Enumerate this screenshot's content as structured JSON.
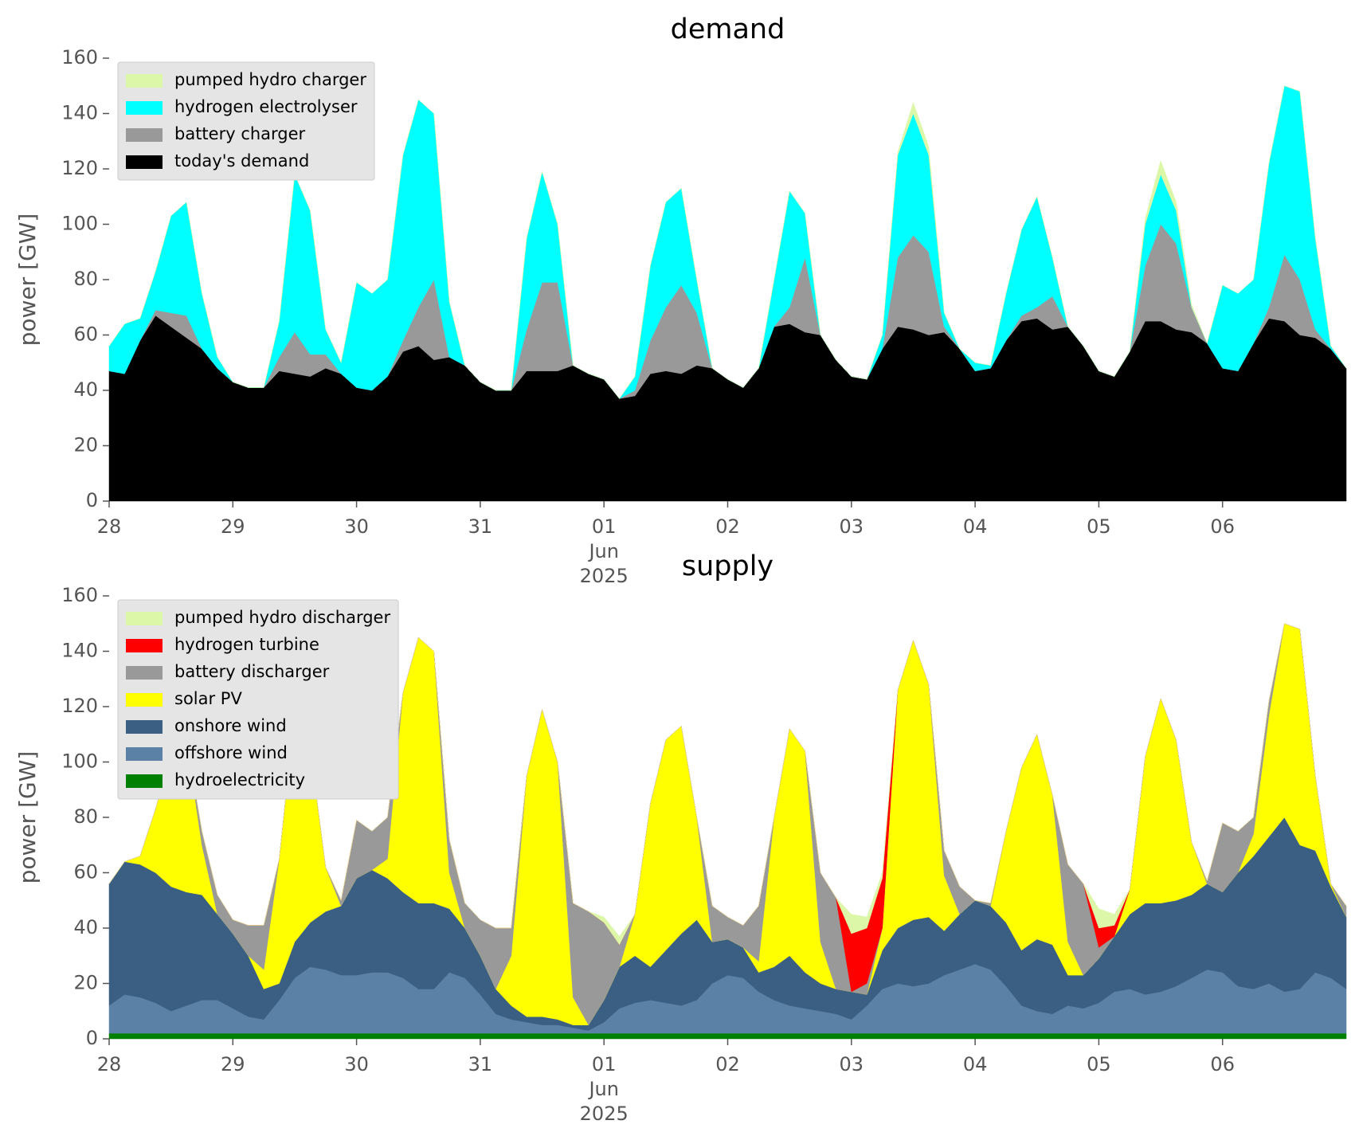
{
  "chart_data": [
    {
      "type": "area",
      "stacked": true,
      "title": "demand",
      "ylabel": "power [GW]",
      "legend": "upper left",
      "x": [
        0,
        3,
        6,
        9,
        12,
        15,
        18,
        21,
        24,
        27,
        30,
        33,
        36,
        39,
        42,
        45,
        48,
        51,
        54,
        57,
        60,
        63,
        66,
        69,
        72,
        75,
        78,
        81,
        84,
        87,
        90,
        93,
        96,
        99,
        102,
        105,
        108,
        111,
        114,
        117,
        120,
        123,
        126,
        129,
        132,
        135,
        138,
        141,
        144,
        147,
        150,
        153,
        156,
        159,
        162,
        165,
        168,
        171,
        174,
        177,
        180,
        183,
        186,
        189,
        192,
        195,
        198,
        201,
        204,
        207,
        210,
        213,
        216,
        219,
        222,
        225,
        228,
        231,
        234,
        237,
        240
      ],
      "xlim": [
        0,
        240
      ],
      "xticks": [
        {
          "value": 0,
          "label": "28"
        },
        {
          "value": 24,
          "label": "29"
        },
        {
          "value": 48,
          "label": "30"
        },
        {
          "value": 72,
          "label": "31"
        },
        {
          "value": 96,
          "label": "01"
        },
        {
          "value": 120,
          "label": "02"
        },
        {
          "value": 144,
          "label": "03"
        },
        {
          "value": 168,
          "label": "04"
        },
        {
          "value": 192,
          "label": "05"
        },
        {
          "value": 216,
          "label": "06"
        }
      ],
      "xtick_sublabels": [
        "Jun",
        "2025"
      ],
      "ylim": [
        0,
        160
      ],
      "yticks": [
        0,
        20,
        40,
        60,
        80,
        100,
        120,
        140,
        160
      ],
      "series": [
        {
          "name": "today's demand",
          "color": "#000000",
          "values": [
            47,
            46,
            58,
            67,
            63,
            59,
            55,
            48,
            43,
            41,
            41,
            47,
            46,
            45,
            48,
            46,
            41,
            40,
            45,
            54,
            56,
            51,
            52,
            49,
            43,
            40,
            40,
            47,
            47,
            47,
            49,
            46,
            44,
            37,
            38,
            46,
            47,
            46,
            49,
            48,
            44,
            41,
            48,
            63,
            64,
            61,
            60,
            51,
            45,
            44,
            55,
            63,
            62,
            60,
            61,
            55,
            47,
            48,
            58,
            65,
            66,
            62,
            63,
            56,
            47,
            45,
            54,
            65,
            65,
            62,
            61,
            57,
            48,
            47,
            57,
            66,
            65,
            60,
            59,
            55,
            48
          ]
        },
        {
          "name": "battery charger",
          "color": "#999999",
          "values": [
            0,
            0,
            0,
            2,
            5,
            8,
            0,
            0,
            0,
            0,
            0,
            5,
            15,
            8,
            5,
            0,
            0,
            0,
            0,
            4,
            14,
            29,
            0,
            0,
            0,
            0,
            0,
            15,
            32,
            32,
            0,
            0,
            0,
            0,
            2,
            12,
            23,
            32,
            19,
            0,
            0,
            0,
            0,
            0,
            6,
            27,
            0,
            0,
            0,
            0,
            0,
            25,
            34,
            30,
            2,
            0,
            0,
            0,
            0,
            2,
            4,
            12,
            0,
            0,
            0,
            0,
            0,
            20,
            35,
            31,
            9,
            0,
            0,
            0,
            0,
            4,
            24,
            20,
            3,
            0,
            0
          ]
        },
        {
          "name": "hydrogen electrolyser",
          "color": "#00ffff",
          "values": [
            9,
            18,
            8,
            14,
            35,
            41,
            20,
            4,
            0,
            0,
            0,
            13,
            57,
            52,
            9,
            4,
            38,
            35,
            35,
            67,
            75,
            60,
            20,
            0,
            0,
            0,
            0,
            33,
            40,
            21,
            0,
            0,
            0,
            0,
            5,
            27,
            38,
            35,
            12,
            0,
            0,
            0,
            0,
            17,
            42,
            16,
            0,
            0,
            0,
            0,
            5,
            37,
            44,
            35,
            5,
            0,
            3,
            1,
            17,
            31,
            40,
            14,
            0,
            0,
            0,
            0,
            0,
            15,
            18,
            12,
            0,
            0,
            30,
            28,
            23,
            52,
            61,
            68,
            33,
            1,
            0
          ]
        },
        {
          "name": "pumped hydro charger",
          "color": "#ddf7a8",
          "values": [
            0,
            0,
            0,
            0,
            0,
            0,
            0,
            0,
            0,
            0,
            0,
            0,
            0,
            0,
            0,
            0,
            0,
            0,
            0,
            0,
            0,
            0,
            0,
            0,
            0,
            0,
            0,
            0,
            0,
            0,
            0,
            0,
            0,
            0,
            0,
            0,
            0,
            0,
            0,
            0,
            0,
            0,
            0,
            0,
            0,
            0,
            0,
            0,
            0,
            0,
            0,
            1,
            4,
            3,
            0,
            0,
            0,
            0,
            0,
            0,
            0,
            0,
            0,
            0,
            0,
            0,
            0,
            2,
            5,
            3,
            1,
            0,
            0,
            0,
            0,
            0,
            0,
            0,
            0,
            0,
            0
          ]
        }
      ]
    },
    {
      "type": "area",
      "stacked": true,
      "title": "supply",
      "ylabel": "power [GW]",
      "legend": "upper left",
      "x": [
        0,
        3,
        6,
        9,
        12,
        15,
        18,
        21,
        24,
        27,
        30,
        33,
        36,
        39,
        42,
        45,
        48,
        51,
        54,
        57,
        60,
        63,
        66,
        69,
        72,
        75,
        78,
        81,
        84,
        87,
        90,
        93,
        96,
        99,
        102,
        105,
        108,
        111,
        114,
        117,
        120,
        123,
        126,
        129,
        132,
        135,
        138,
        141,
        144,
        147,
        150,
        153,
        156,
        159,
        162,
        165,
        168,
        171,
        174,
        177,
        180,
        183,
        186,
        189,
        192,
        195,
        198,
        201,
        204,
        207,
        210,
        213,
        216,
        219,
        222,
        225,
        228,
        231,
        234,
        237,
        240
      ],
      "xlim": [
        0,
        240
      ],
      "xticks": [
        {
          "value": 0,
          "label": "28"
        },
        {
          "value": 24,
          "label": "29"
        },
        {
          "value": 48,
          "label": "30"
        },
        {
          "value": 72,
          "label": "31"
        },
        {
          "value": 96,
          "label": "01"
        },
        {
          "value": 120,
          "label": "02"
        },
        {
          "value": 144,
          "label": "03"
        },
        {
          "value": 168,
          "label": "04"
        },
        {
          "value": 192,
          "label": "05"
        },
        {
          "value": 216,
          "label": "06"
        }
      ],
      "xtick_sublabels": [
        "Jun",
        "2025"
      ],
      "ylim": [
        0,
        160
      ],
      "yticks": [
        0,
        20,
        40,
        60,
        80,
        100,
        120,
        140,
        160
      ],
      "series": [
        {
          "name": "hydroelectricity",
          "color": "#008000",
          "values": [
            2,
            2,
            2,
            2,
            2,
            2,
            2,
            2,
            2,
            2,
            2,
            2,
            2,
            2,
            2,
            2,
            2,
            2,
            2,
            2,
            2,
            2,
            2,
            2,
            2,
            2,
            2,
            2,
            2,
            2,
            2,
            2,
            2,
            2,
            2,
            2,
            2,
            2,
            2,
            2,
            2,
            2,
            2,
            2,
            2,
            2,
            2,
            2,
            2,
            2,
            2,
            2,
            2,
            2,
            2,
            2,
            2,
            2,
            2,
            2,
            2,
            2,
            2,
            2,
            2,
            2,
            2,
            2,
            2,
            2,
            2,
            2,
            2,
            2,
            2,
            2,
            2,
            2,
            2,
            2,
            2
          ]
        },
        {
          "name": "offshore wind",
          "color": "#5b82a6",
          "values": [
            10,
            14,
            13,
            11,
            8,
            10,
            12,
            12,
            9,
            6,
            5,
            12,
            20,
            24,
            23,
            21,
            21,
            22,
            22,
            20,
            16,
            16,
            22,
            20,
            14,
            7,
            5,
            4,
            3,
            3,
            2,
            1,
            4,
            9,
            11,
            12,
            11,
            10,
            12,
            18,
            21,
            20,
            15,
            12,
            10,
            9,
            8,
            7,
            5,
            10,
            16,
            18,
            17,
            18,
            21,
            23,
            25,
            23,
            17,
            10,
            8,
            7,
            10,
            9,
            11,
            15,
            16,
            14,
            15,
            17,
            20,
            23,
            22,
            17,
            16,
            18,
            15,
            16,
            22,
            20,
            16
          ]
        },
        {
          "name": "onshore wind",
          "color": "#3a5f82",
          "values": [
            44,
            48,
            48,
            47,
            45,
            41,
            38,
            31,
            27,
            22,
            11,
            6,
            13,
            16,
            21,
            25,
            35,
            37,
            34,
            31,
            31,
            31,
            23,
            18,
            14,
            9,
            5,
            2,
            3,
            2,
            1,
            2,
            8,
            15,
            17,
            12,
            19,
            26,
            29,
            15,
            13,
            11,
            7,
            12,
            18,
            13,
            10,
            9,
            10,
            4,
            14,
            20,
            24,
            24,
            16,
            20,
            23,
            23,
            23,
            20,
            26,
            25,
            11,
            12,
            16,
            20,
            27,
            33,
            32,
            31,
            30,
            31,
            29,
            41,
            48,
            53,
            63,
            52,
            44,
            33,
            26
          ]
        },
        {
          "name": "solar PV",
          "color": "#ffff00",
          "values": [
            0,
            0,
            3,
            23,
            48,
            55,
            18,
            0,
            0,
            0,
            7,
            45,
            83,
            63,
            16,
            0,
            0,
            0,
            7,
            72,
            96,
            91,
            13,
            0,
            0,
            0,
            18,
            87,
            111,
            93,
            10,
            0,
            0,
            0,
            15,
            59,
            76,
            75,
            37,
            0,
            0,
            0,
            4,
            54,
            82,
            80,
            15,
            0,
            0,
            0,
            8,
            86,
            101,
            84,
            20,
            0,
            0,
            0,
            33,
            66,
            74,
            54,
            12,
            0,
            0,
            0,
            9,
            53,
            74,
            58,
            19,
            0,
            0,
            0,
            8,
            44,
            70,
            78,
            27,
            1,
            0
          ]
        },
        {
          "name": "battery discharger",
          "color": "#999999",
          "values": [
            0,
            0,
            0,
            0,
            0,
            0,
            5,
            7,
            5,
            11,
            16,
            0,
            0,
            0,
            0,
            2,
            21,
            14,
            15,
            0,
            0,
            0,
            12,
            9,
            13,
            22,
            10,
            0,
            0,
            0,
            34,
            41,
            28,
            8,
            0,
            0,
            0,
            0,
            0,
            13,
            8,
            8,
            20,
            0,
            0,
            0,
            25,
            33,
            0,
            4,
            0,
            0,
            0,
            0,
            9,
            10,
            0,
            1,
            0,
            0,
            0,
            0,
            28,
            33,
            4,
            0,
            0,
            0,
            0,
            0,
            0,
            1,
            25,
            15,
            6,
            5,
            0,
            0,
            0,
            0,
            4
          ]
        },
        {
          "name": "hydrogen turbine",
          "color": "#ff0000",
          "values": [
            0,
            0,
            0,
            0,
            0,
            0,
            0,
            0,
            0,
            0,
            0,
            0,
            0,
            0,
            0,
            0,
            0,
            0,
            0,
            0,
            0,
            0,
            0,
            0,
            0,
            0,
            0,
            0,
            0,
            0,
            0,
            0,
            0,
            0,
            0,
            0,
            0,
            0,
            0,
            0,
            0,
            0,
            0,
            0,
            0,
            0,
            0,
            0,
            21,
            20,
            18,
            0,
            0,
            0,
            0,
            0,
            0,
            0,
            0,
            0,
            0,
            0,
            0,
            0,
            7,
            4,
            0,
            0,
            0,
            0,
            0,
            0,
            0,
            0,
            0,
            0,
            0,
            0,
            0,
            0,
            0
          ]
        },
        {
          "name": "pumped hydro discharger",
          "color": "#ddf7a8",
          "values": [
            0,
            0,
            0,
            0,
            0,
            0,
            0,
            0,
            0,
            0,
            0,
            0,
            0,
            0,
            0,
            0,
            0,
            0,
            0,
            0,
            0,
            0,
            0,
            0,
            0,
            0,
            0,
            0,
            0,
            0,
            0,
            0,
            2,
            3,
            0,
            0,
            0,
            0,
            0,
            0,
            0,
            0,
            0,
            0,
            0,
            0,
            0,
            0,
            7,
            4,
            2,
            0,
            0,
            0,
            0,
            0,
            0,
            0,
            0,
            0,
            0,
            0,
            0,
            0,
            7,
            4,
            0,
            0,
            0,
            0,
            0,
            0,
            0,
            0,
            0,
            0,
            0,
            0,
            0,
            0,
            0
          ]
        }
      ]
    }
  ]
}
